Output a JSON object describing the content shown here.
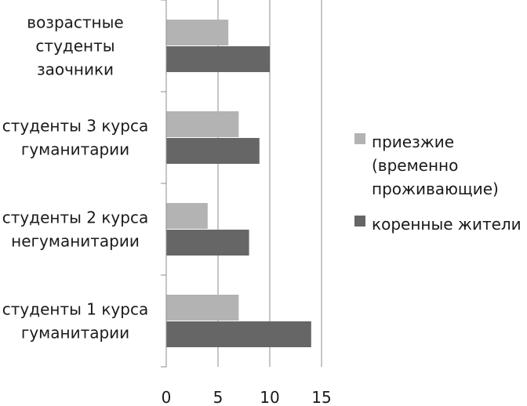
{
  "chart_data": {
    "type": "bar",
    "orientation": "horizontal",
    "categories": [
      [
        "студенты 1 курса",
        "гуманитарии"
      ],
      [
        "студенты 2 курса",
        "негуманитарии"
      ],
      [
        "студенты 3 курса",
        "гуманитарии"
      ],
      [
        "возрастные",
        "студенты",
        "заочники"
      ]
    ],
    "series": [
      {
        "name": "коренные жители",
        "color": "#666666",
        "values": [
          14,
          8,
          9,
          10
        ]
      },
      {
        "name": "приезжие (временно проживающие)",
        "name_lines": [
          "приезжие",
          "(временно",
          "проживающие)"
        ],
        "color": "#b3b3b3",
        "values": [
          7,
          4,
          7,
          6
        ]
      }
    ],
    "x_ticks": [
      "0",
      "5",
      "10",
      "15"
    ],
    "xlim": [
      0,
      15
    ],
    "grid": "vertical",
    "legend_position": "right"
  }
}
